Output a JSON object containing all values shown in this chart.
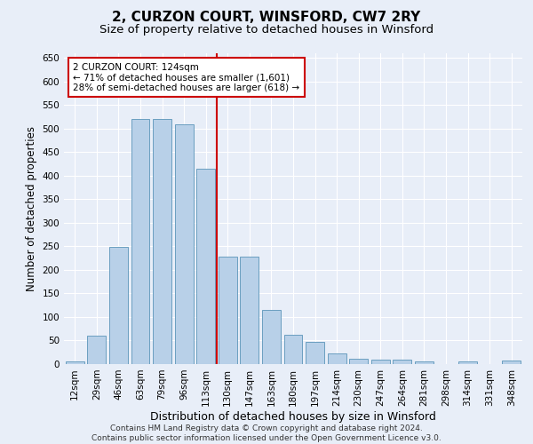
{
  "title": "2, CURZON COURT, WINSFORD, CW7 2RY",
  "subtitle": "Size of property relative to detached houses in Winsford",
  "xlabel": "Distribution of detached houses by size in Winsford",
  "ylabel": "Number of detached properties",
  "categories": [
    "12sqm",
    "29sqm",
    "46sqm",
    "63sqm",
    "79sqm",
    "96sqm",
    "113sqm",
    "130sqm",
    "147sqm",
    "163sqm",
    "180sqm",
    "197sqm",
    "214sqm",
    "230sqm",
    "247sqm",
    "264sqm",
    "281sqm",
    "298sqm",
    "314sqm",
    "331sqm",
    "348sqm"
  ],
  "values": [
    5,
    60,
    248,
    520,
    520,
    510,
    415,
    228,
    228,
    115,
    63,
    47,
    22,
    12,
    9,
    9,
    6,
    0,
    5,
    0,
    7
  ],
  "bar_color": "#b8d0e8",
  "bar_edge_color": "#6a9fc0",
  "vline_color": "#cc0000",
  "annotation_box_color": "#ffffff",
  "annotation_box_edge": "#cc0000",
  "annotation_text_line1": "2 CURZON COURT: 124sqm",
  "annotation_text_line2": "← 71% of detached houses are smaller (1,601)",
  "annotation_text_line3": "28% of semi-detached houses are larger (618) →",
  "ylim": [
    0,
    660
  ],
  "yticks": [
    0,
    50,
    100,
    150,
    200,
    250,
    300,
    350,
    400,
    450,
    500,
    550,
    600,
    650
  ],
  "bg_color": "#e8eef8",
  "footer_line1": "Contains HM Land Registry data © Crown copyright and database right 2024.",
  "footer_line2": "Contains public sector information licensed under the Open Government Licence v3.0.",
  "title_fontsize": 11,
  "subtitle_fontsize": 9.5,
  "xlabel_fontsize": 9,
  "ylabel_fontsize": 8.5,
  "tick_fontsize": 7.5,
  "footer_fontsize": 6.5,
  "annotation_fontsize": 7.5
}
